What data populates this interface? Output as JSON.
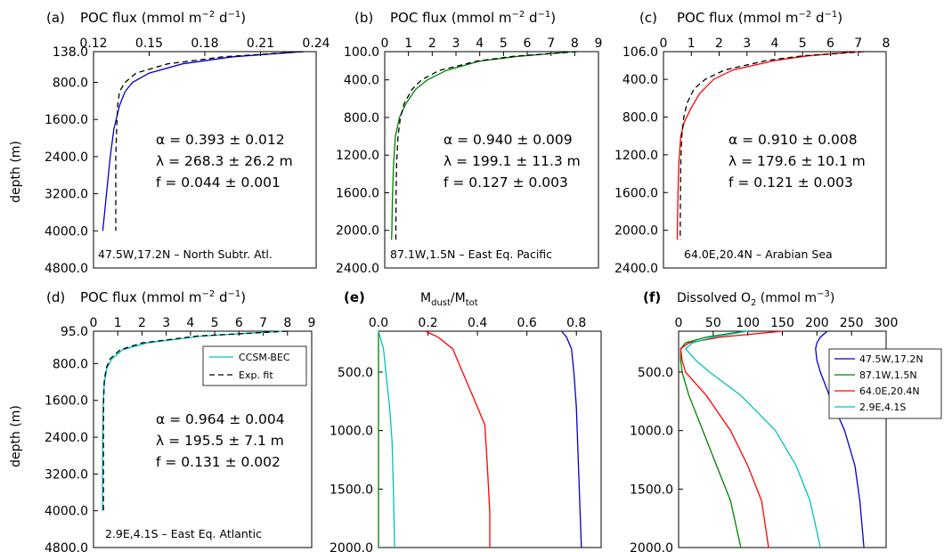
{
  "chart_data": [
    {
      "type": "line",
      "panel_label": "(a)",
      "title": "POC flux (mmol m$-2$ d$-1$)",
      "title_main": "POC flux (mmol m",
      "title_exp1": "−2",
      "title_mid": " d",
      "title_exp2": "−1",
      "title_end": ")",
      "xlim": [
        0.12,
        0.24
      ],
      "xticks": [
        "0.12",
        "0.15",
        "0.18",
        "0.21",
        "0.24"
      ],
      "ylim": [
        138,
        4800
      ],
      "ytick_values": [
        138,
        800,
        1600,
        2400,
        3200,
        4000,
        4800
      ],
      "yticks": [
        "138.0",
        "800.0",
        "1600.0",
        "2400.0",
        "3200.0",
        "4000.0",
        "4800.0"
      ],
      "ylabel": "depth (m)",
      "stats": [
        "α = 0.393 ± 0.012",
        "λ = 268.3 ± 26.2 m",
        "f = 0.044 ± 0.001"
      ],
      "location": "47.5W,17.2N – North Subtr. Atl.",
      "color": "#0000cc",
      "series": [
        {
          "depth": [
            138,
            250,
            400,
            600,
            800,
            1000,
            1300,
            1800,
            2400,
            3200,
            4000
          ],
          "values": [
            0.233,
            0.195,
            0.168,
            0.15,
            0.141,
            0.137,
            0.134,
            0.131,
            0.129,
            0.127,
            0.125
          ]
        },
        {
          "depth": [
            138,
            250,
            400,
            600,
            800,
            1000,
            1300,
            1800,
            2400,
            3200,
            4000
          ],
          "values": [
            0.233,
            0.19,
            0.16,
            0.143,
            0.137,
            0.134,
            0.133,
            0.1325,
            0.132,
            0.132,
            0.132
          ]
        }
      ]
    },
    {
      "type": "line",
      "panel_label": "(b)",
      "title_main": "POC flux (mmol m",
      "title_exp1": "−2",
      "title_mid": " d",
      "title_exp2": "−1",
      "title_end": ")",
      "xlim": [
        0,
        9
      ],
      "xticks": [
        "0",
        "1",
        "2",
        "3",
        "4",
        "5",
        "6",
        "7",
        "8",
        "9"
      ],
      "ylim": [
        100,
        2400
      ],
      "ytick_values": [
        100,
        400,
        800,
        1200,
        1600,
        2000,
        2400
      ],
      "yticks": [
        "100.0",
        "400.0",
        "800.0",
        "1200.0",
        "1600.0",
        "2000.0",
        "2400.0"
      ],
      "stats": [
        "α = 0.940 ± 0.009",
        "λ = 199.1 ± 11.3 m",
        "f = 0.127 ± 0.003"
      ],
      "location": "87.1W,1.5N – East Eq. Pacific",
      "color": "#008000",
      "series": [
        {
          "depth": [
            100,
            150,
            200,
            300,
            400,
            500,
            650,
            800,
            1000,
            1300,
            1600,
            2000,
            2100
          ],
          "values": [
            8.0,
            5.6,
            4.0,
            2.6,
            1.8,
            1.3,
            0.9,
            0.62,
            0.45,
            0.37,
            0.33,
            0.3,
            0.29
          ]
        },
        {
          "depth": [
            100,
            150,
            200,
            300,
            400,
            500,
            650,
            800,
            1000,
            1300,
            1600,
            2000,
            2100
          ],
          "values": [
            8.1,
            5.4,
            3.9,
            2.3,
            1.55,
            1.15,
            0.82,
            0.66,
            0.56,
            0.5,
            0.48,
            0.47,
            0.47
          ]
        }
      ]
    },
    {
      "type": "line",
      "panel_label": "(c)",
      "title_main": "POC flux (mmol m",
      "title_exp1": "−2",
      "title_mid": " d",
      "title_exp2": "−1",
      "title_end": ")",
      "xlim": [
        0,
        8
      ],
      "xticks": [
        "0",
        "1",
        "2",
        "3",
        "4",
        "5",
        "6",
        "7",
        "8"
      ],
      "ylim": [
        106,
        2400
      ],
      "ytick_values": [
        106,
        400,
        800,
        1200,
        1600,
        2000,
        2400
      ],
      "yticks": [
        "106.0",
        "400.0",
        "800.0",
        "1200.0",
        "1600.0",
        "2000.0",
        "2400.0"
      ],
      "stats": [
        "α = 0.910 ± 0.008",
        "λ = 179.6 ± 10.1 m",
        "f = 0.121 ± 0.003"
      ],
      "location": "64.0E,20.4N – Arabian Sea",
      "color": "#ff0000",
      "series": [
        {
          "depth": [
            106,
            150,
            200,
            300,
            400,
            550,
            700,
            850,
            1000,
            1300,
            1600,
            2000,
            2100
          ],
          "values": [
            7.0,
            5.2,
            4.0,
            2.5,
            1.8,
            1.3,
            1.0,
            0.75,
            0.62,
            0.55,
            0.52,
            0.5,
            0.5
          ]
        },
        {
          "depth": [
            106,
            150,
            200,
            300,
            400,
            500,
            650,
            800,
            1000,
            1300,
            1600,
            2000,
            2100
          ],
          "values": [
            7.2,
            5.0,
            3.7,
            2.2,
            1.5,
            1.1,
            0.85,
            0.73,
            0.66,
            0.62,
            0.61,
            0.6,
            0.6
          ]
        }
      ]
    },
    {
      "type": "line",
      "panel_label": "(d)",
      "title_main": "POC flux (mmol m",
      "title_exp1": "−2",
      "title_mid": " d",
      "title_exp2": "−1",
      "title_end": ")",
      "xlim": [
        0,
        9
      ],
      "xticks": [
        "0",
        "1",
        "2",
        "3",
        "4",
        "5",
        "6",
        "7",
        "8",
        "9"
      ],
      "ylim": [
        95,
        4800
      ],
      "ytick_values": [
        95,
        800,
        1600,
        2400,
        3200,
        4000,
        4800
      ],
      "yticks": [
        "95.0",
        "800.0",
        "1600.0",
        "2400.0",
        "3200.0",
        "4000.0",
        "4800.0"
      ],
      "ylabel": "depth (m)",
      "stats": [
        "α = 0.964 ± 0.004",
        "λ = 195.5 ± 7.1 m",
        "f = 0.131 ± 0.002"
      ],
      "location": "2.9E,4.1S – East Eq. Atlantic",
      "legend": [
        "CCSM-BEC",
        "Exp. fit"
      ],
      "color": "#00bfbf",
      "series": [
        {
          "name": "CCSM-BEC",
          "depth": [
            95,
            200,
            350,
            500,
            700,
            900,
            1200,
            1600,
            2400,
            3200,
            4000
          ],
          "values": [
            7.8,
            4.5,
            2.2,
            1.2,
            0.75,
            0.55,
            0.45,
            0.4,
            0.38,
            0.37,
            0.37
          ]
        },
        {
          "name": "Exp. fit",
          "depth": [
            95,
            200,
            350,
            500,
            700,
            900,
            1200,
            1600,
            2400,
            3200,
            4000
          ],
          "values": [
            8.0,
            4.3,
            2.0,
            1.1,
            0.68,
            0.52,
            0.44,
            0.42,
            0.41,
            0.41,
            0.41
          ]
        }
      ]
    },
    {
      "type": "line",
      "panel_label": "(e)",
      "title_main": "M",
      "title_sub1": "dust",
      "title_sep": "/M",
      "title_sub2": "tot",
      "xlim": [
        0.0,
        0.9
      ],
      "xticks": [
        "0.0",
        "0.2",
        "0.4",
        "0.6",
        "0.8"
      ],
      "ylim": [
        150,
        2000
      ],
      "ytick_values": [
        500,
        1000,
        1500,
        2000
      ],
      "yticks": [
        "500.0",
        "1000.0",
        "1500.0",
        "2000.0"
      ],
      "series": [
        {
          "color": "#0000cc",
          "depth": [
            150,
            200,
            300,
            500,
            800,
            1100,
            1400,
            1700,
            2000
          ],
          "values": [
            0.74,
            0.76,
            0.78,
            0.79,
            0.8,
            0.805,
            0.81,
            0.815,
            0.82
          ]
        },
        {
          "color": "#008000",
          "depth": [
            150,
            500,
            1000,
            1500,
            2000
          ],
          "values": [
            0.0,
            0.0,
            0.0,
            0.0,
            0.0
          ]
        },
        {
          "color": "#ff0000",
          "depth": [
            150,
            200,
            300,
            500,
            700,
            950,
            1300,
            1700,
            2000
          ],
          "values": [
            0.19,
            0.24,
            0.3,
            0.34,
            0.38,
            0.43,
            0.44,
            0.45,
            0.45
          ]
        },
        {
          "color": "#00bfbf",
          "depth": [
            150,
            300,
            500,
            800,
            1100,
            1500,
            2000
          ],
          "values": [
            0.0,
            0.02,
            0.03,
            0.045,
            0.055,
            0.06,
            0.065
          ]
        }
      ]
    },
    {
      "type": "line",
      "panel_label": "(f)",
      "title_main": "Dissolved O",
      "title_sub1": "2",
      "title_mid": " (mmol m",
      "title_exp1": "−3",
      "title_end": ")",
      "xlim": [
        0,
        300
      ],
      "xticks": [
        "0",
        "50",
        "100",
        "150",
        "200",
        "250",
        "300"
      ],
      "ylim": [
        150,
        2000
      ],
      "ytick_values": [
        500,
        1000,
        1500,
        2000
      ],
      "yticks": [
        "500.0",
        "1000.0",
        "1500.0",
        "2000.0"
      ],
      "legend": [
        "47.5W,17.2N",
        "87.1W,1.5N",
        "64.0E,20.4N",
        "2.9E,4.1S"
      ],
      "series": [
        {
          "name": "47.5W,17.2N",
          "color": "#0000cc",
          "depth": [
            150,
            200,
            250,
            300,
            400,
            500,
            700,
            1000,
            1300,
            1600,
            2000
          ],
          "values": [
            215,
            205,
            200,
            198,
            200,
            205,
            218,
            240,
            255,
            262,
            268
          ]
        },
        {
          "name": "87.1W,1.5N",
          "color": "#008000",
          "depth": [
            150,
            200,
            250,
            300,
            400,
            500,
            700,
            1000,
            1300,
            1600,
            2000
          ],
          "values": [
            95,
            40,
            10,
            3,
            3,
            5,
            15,
            35,
            55,
            75,
            90
          ]
        },
        {
          "name": "64.0E,20.4N",
          "color": "#ff0000",
          "depth": [
            150,
            200,
            250,
            300,
            400,
            500,
            700,
            1000,
            1300,
            1600,
            2000
          ],
          "values": [
            150,
            60,
            15,
            3,
            5,
            10,
            40,
            75,
            100,
            120,
            130
          ]
        },
        {
          "name": "2.9E,4.1S",
          "color": "#00bfbf",
          "depth": [
            150,
            200,
            250,
            300,
            400,
            500,
            700,
            1000,
            1300,
            1600,
            2000
          ],
          "values": [
            100,
            50,
            20,
            10,
            25,
            45,
            90,
            140,
            170,
            190,
            205
          ]
        }
      ]
    }
  ]
}
